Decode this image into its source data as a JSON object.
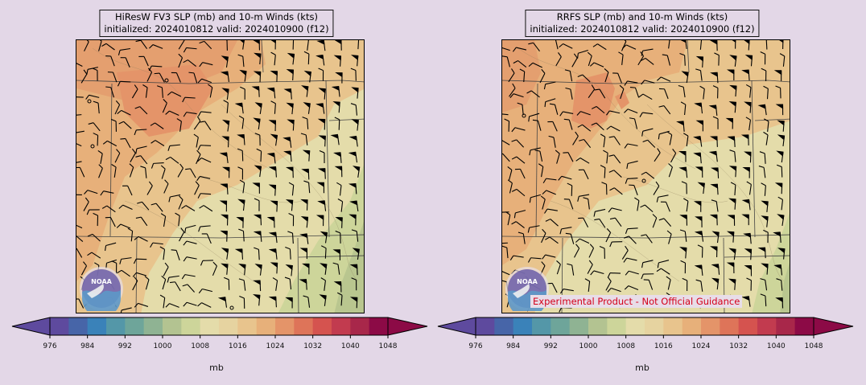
{
  "panels": [
    {
      "title_line1": "HiResW FV3 SLP (mb) and 10-m Winds (kts)",
      "title_line2": "initialized: 2024010812 valid: 2024010900 (f12)"
    },
    {
      "title_line1": "RRFS SLP (mb) and 10-m Winds (kts)",
      "title_line2": "initialized: 2024010812 valid: 2024010900 (f12)"
    }
  ],
  "colorbar": {
    "label": "mb",
    "ticks": [
      "976",
      "984",
      "992",
      "1000",
      "1008",
      "1016",
      "1024",
      "1032",
      "1040",
      "1048"
    ],
    "colors": [
      "#5e4a9e",
      "#4765a8",
      "#3a82b9",
      "#5497a8",
      "#6ea59a",
      "#8fb393",
      "#b3c391",
      "#cdd59a",
      "#e4dcaa",
      "#e6d3a0",
      "#e8c48d",
      "#e7b07a",
      "#e49469",
      "#de7459",
      "#d5534f",
      "#c23b4f",
      "#a8274a",
      "#8c0a46"
    ]
  },
  "logo_text": "NOAA",
  "disclaimer": "Experimental Product - Not Official Guidance"
}
